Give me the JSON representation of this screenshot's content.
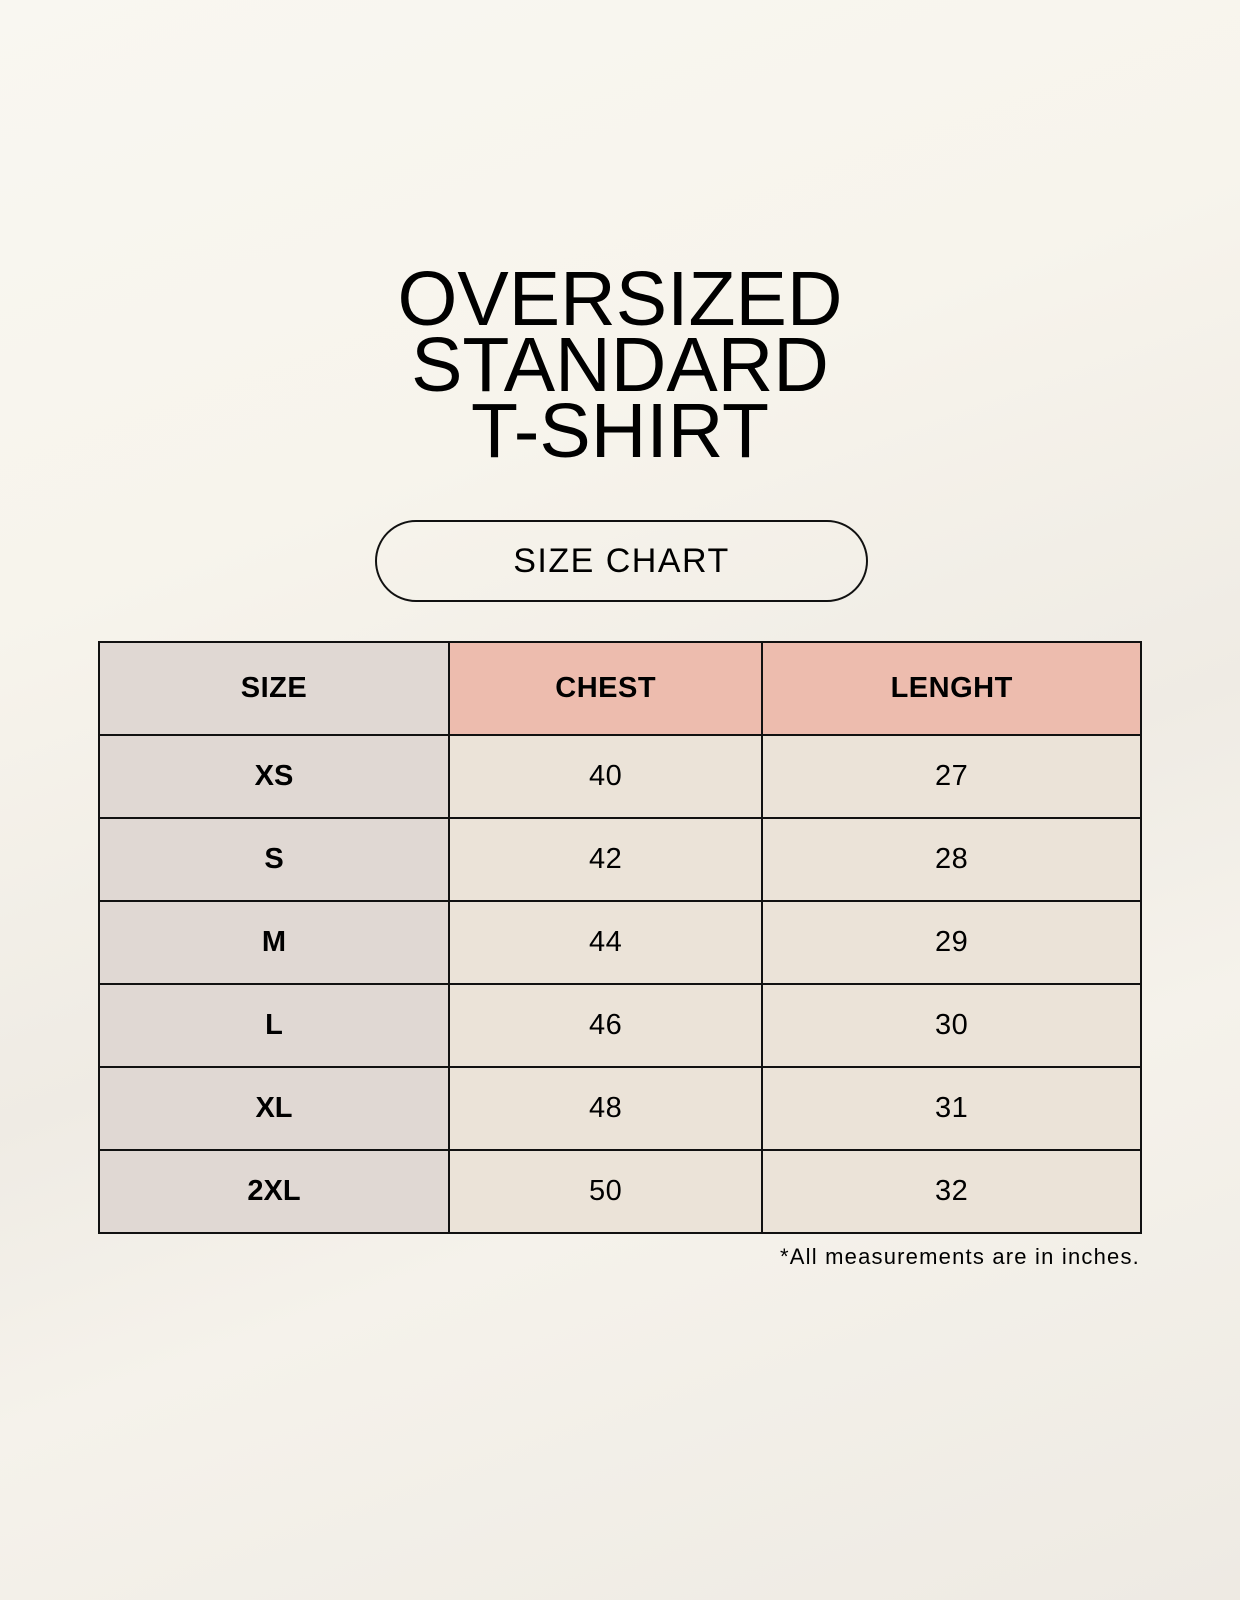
{
  "title": {
    "lines": [
      "OVERSIZED",
      "STANDARD",
      "T-SHIRT"
    ]
  },
  "badge": "SIZE CHART",
  "table": {
    "headers": [
      "SIZE",
      "CHEST",
      "LENGHT"
    ],
    "rows": [
      [
        "XS",
        "40",
        "27"
      ],
      [
        "S",
        "42",
        "28"
      ],
      [
        "M",
        "44",
        "29"
      ],
      [
        "L",
        "46",
        "30"
      ],
      [
        "XL",
        "48",
        "31"
      ],
      [
        "2XL",
        "50",
        "32"
      ]
    ]
  },
  "footnote": "*All measurements are in inches.",
  "colors": {
    "size_column": "#e0d8d3",
    "header_accent": "#edbcae",
    "cell": "#ebe3d8"
  }
}
